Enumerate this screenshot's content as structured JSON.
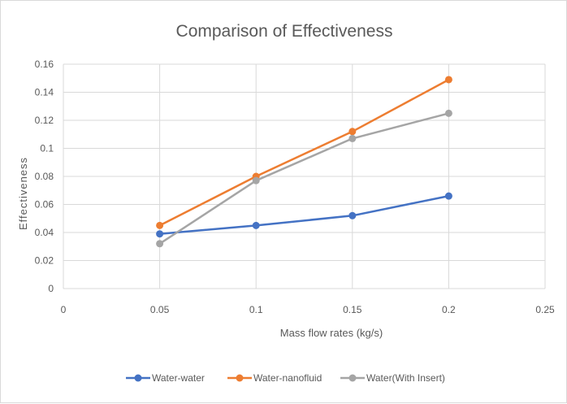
{
  "chart_data": {
    "type": "line",
    "title": "Comparison of Effectiveness",
    "xlabel": "Mass flow rates (kg/s)",
    "ylabel": "Effectiveness",
    "xlim": [
      0,
      0.25
    ],
    "ylim": [
      0,
      0.16
    ],
    "x_ticks": [
      "0",
      "0.05",
      "0.1",
      "0.15",
      "0.2",
      "0.25"
    ],
    "y_ticks": [
      "0",
      "0.02",
      "0.04",
      "0.06",
      "0.08",
      "0.1",
      "0.12",
      "0.14",
      "0.16"
    ],
    "x_tick_values": [
      0,
      0.05,
      0.1,
      0.15,
      0.2,
      0.25
    ],
    "y_tick_values": [
      0,
      0.02,
      0.04,
      0.06,
      0.08,
      0.1,
      0.12,
      0.14,
      0.16
    ],
    "grid": true,
    "legend_position": "bottom",
    "x": [
      0.05,
      0.1,
      0.15,
      0.2
    ],
    "series": [
      {
        "name": "Water-water",
        "color": "#4472c4",
        "values": [
          0.039,
          0.045,
          0.052,
          0.066
        ]
      },
      {
        "name": "Water-nanofluid",
        "color": "#ed7d31",
        "values": [
          0.045,
          0.08,
          0.112,
          0.149
        ]
      },
      {
        "name": "Water(With Insert)",
        "color": "#a5a5a5",
        "values": [
          0.032,
          0.077,
          0.107,
          0.125
        ]
      }
    ]
  }
}
